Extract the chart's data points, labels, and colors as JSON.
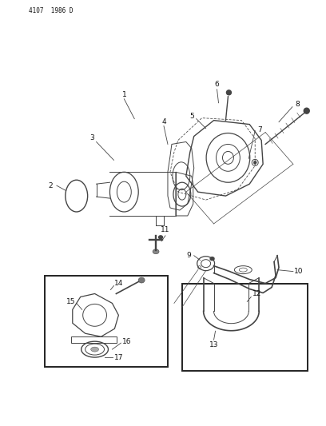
{
  "header_text": "4107  1986 D",
  "bg_color": "#ffffff",
  "line_color": "#444444",
  "fig_width": 4.08,
  "fig_height": 5.33,
  "dpi": 100,
  "part_color": "#444444",
  "text_color": "#111111",
  "label_fontsize": 6.5
}
